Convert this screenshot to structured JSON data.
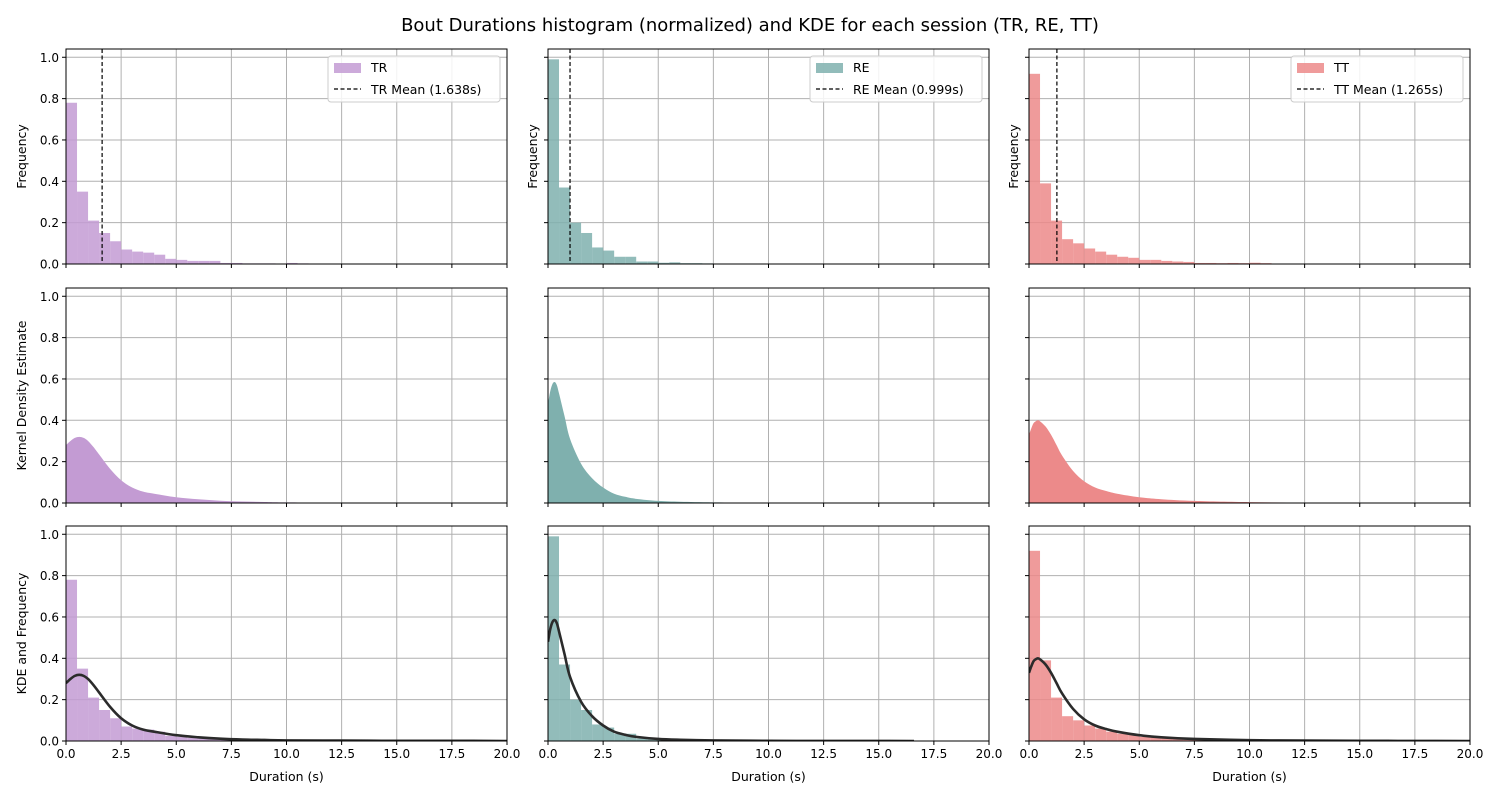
{
  "figure": {
    "title": "Bout Durations histogram (normalized) and KDE for each session (TR, RE, TT)"
  },
  "chart_data": {
    "type": "bar",
    "title": "Bout Durations histogram (normalized) and KDE for each session (TR, RE, TT)",
    "xlim": [
      0,
      20
    ],
    "ylim": [
      0,
      1.04
    ],
    "xticks": [
      "0.0",
      "2.5",
      "5.0",
      "7.5",
      "10.0",
      "12.5",
      "15.0",
      "17.5",
      "20.0"
    ],
    "yticks": [
      "0.0",
      "0.2",
      "0.4",
      "0.6",
      "0.8",
      "1.0"
    ],
    "xlabel": "Duration (s)",
    "row_ylabels": [
      "Frequency",
      "Kernel Density Estimate",
      "KDE and Frequency"
    ],
    "grid": true,
    "legend_position": "upper right",
    "sessions": [
      {
        "name": "TR",
        "color": "#c39bd3",
        "mean": 1.638,
        "mean_label": "TR Mean (1.638s)",
        "column_ylabel": "Frequency",
        "bin_width": 0.5,
        "hist": [
          0.78,
          0.35,
          0.21,
          0.15,
          0.11,
          0.07,
          0.06,
          0.055,
          0.045,
          0.025,
          0.02,
          0.015,
          0.015,
          0.015,
          0.005,
          0.005,
          0.003,
          0.003,
          0.003,
          0.002,
          0.005,
          0.003,
          0.002,
          0.002,
          0.001,
          0.001,
          0.001,
          0.001,
          0.001,
          0.001
        ],
        "kde_x": [
          0.0,
          0.2,
          0.4,
          0.6,
          0.8,
          1.0,
          1.25,
          1.5,
          2.0,
          2.5,
          3.0,
          3.5,
          4.0,
          5.0,
          6.0,
          7.0,
          8.0,
          9.0,
          10.0,
          12.5,
          15.0,
          17.5,
          20.0
        ],
        "kde_y": [
          0.28,
          0.3,
          0.315,
          0.32,
          0.315,
          0.3,
          0.27,
          0.235,
          0.165,
          0.11,
          0.075,
          0.055,
          0.045,
          0.028,
          0.018,
          0.011,
          0.007,
          0.005,
          0.003,
          0.002,
          0.001,
          0.001,
          0.0
        ]
      },
      {
        "name": "RE",
        "color": "#7fb0ae",
        "mean": 0.999,
        "mean_label": "RE Mean (0.999s)",
        "column_ylabel": "Frequency",
        "bin_width": 0.5,
        "hist": [
          0.99,
          0.37,
          0.2,
          0.15,
          0.08,
          0.065,
          0.035,
          0.035,
          0.012,
          0.012,
          0.006,
          0.008,
          0.004,
          0.004,
          0.003,
          0.002,
          0.001,
          0.001,
          0.001,
          0.001
        ],
        "kde_x": [
          0.0,
          0.1,
          0.2,
          0.3,
          0.4,
          0.5,
          0.75,
          1.0,
          1.5,
          2.0,
          2.5,
          3.0,
          3.5,
          4.0,
          5.0,
          6.0,
          7.5,
          10.0,
          12.5,
          15.0,
          16.6
        ],
        "kde_y": [
          0.48,
          0.54,
          0.575,
          0.585,
          0.57,
          0.53,
          0.42,
          0.31,
          0.19,
          0.12,
          0.075,
          0.045,
          0.03,
          0.02,
          0.01,
          0.006,
          0.003,
          0.001,
          0.0005,
          0.0002,
          0.0
        ]
      },
      {
        "name": "TT",
        "color": "#ec8a8a",
        "mean": 1.265,
        "mean_label": "TT Mean (1.265s)",
        "column_ylabel": "Frequency",
        "bin_width": 0.5,
        "hist": [
          0.92,
          0.39,
          0.21,
          0.12,
          0.1,
          0.075,
          0.06,
          0.045,
          0.035,
          0.03,
          0.02,
          0.02,
          0.015,
          0.012,
          0.01,
          0.005,
          0.005,
          0.004,
          0.005,
          0.004,
          0.006,
          0.004,
          0.002,
          0.002,
          0.001,
          0.001,
          0.001,
          0.001
        ],
        "kde_x": [
          0.0,
          0.1,
          0.2,
          0.3,
          0.4,
          0.5,
          0.75,
          1.0,
          1.25,
          1.5,
          2.0,
          2.5,
          3.0,
          3.5,
          4.0,
          5.0,
          6.0,
          7.5,
          10.0,
          12.5,
          15.0,
          17.5,
          20.0
        ],
        "kde_y": [
          0.33,
          0.36,
          0.385,
          0.395,
          0.4,
          0.395,
          0.37,
          0.33,
          0.28,
          0.23,
          0.155,
          0.105,
          0.075,
          0.058,
          0.045,
          0.028,
          0.018,
          0.01,
          0.004,
          0.002,
          0.001,
          0.0005,
          0.0
        ]
      }
    ]
  }
}
